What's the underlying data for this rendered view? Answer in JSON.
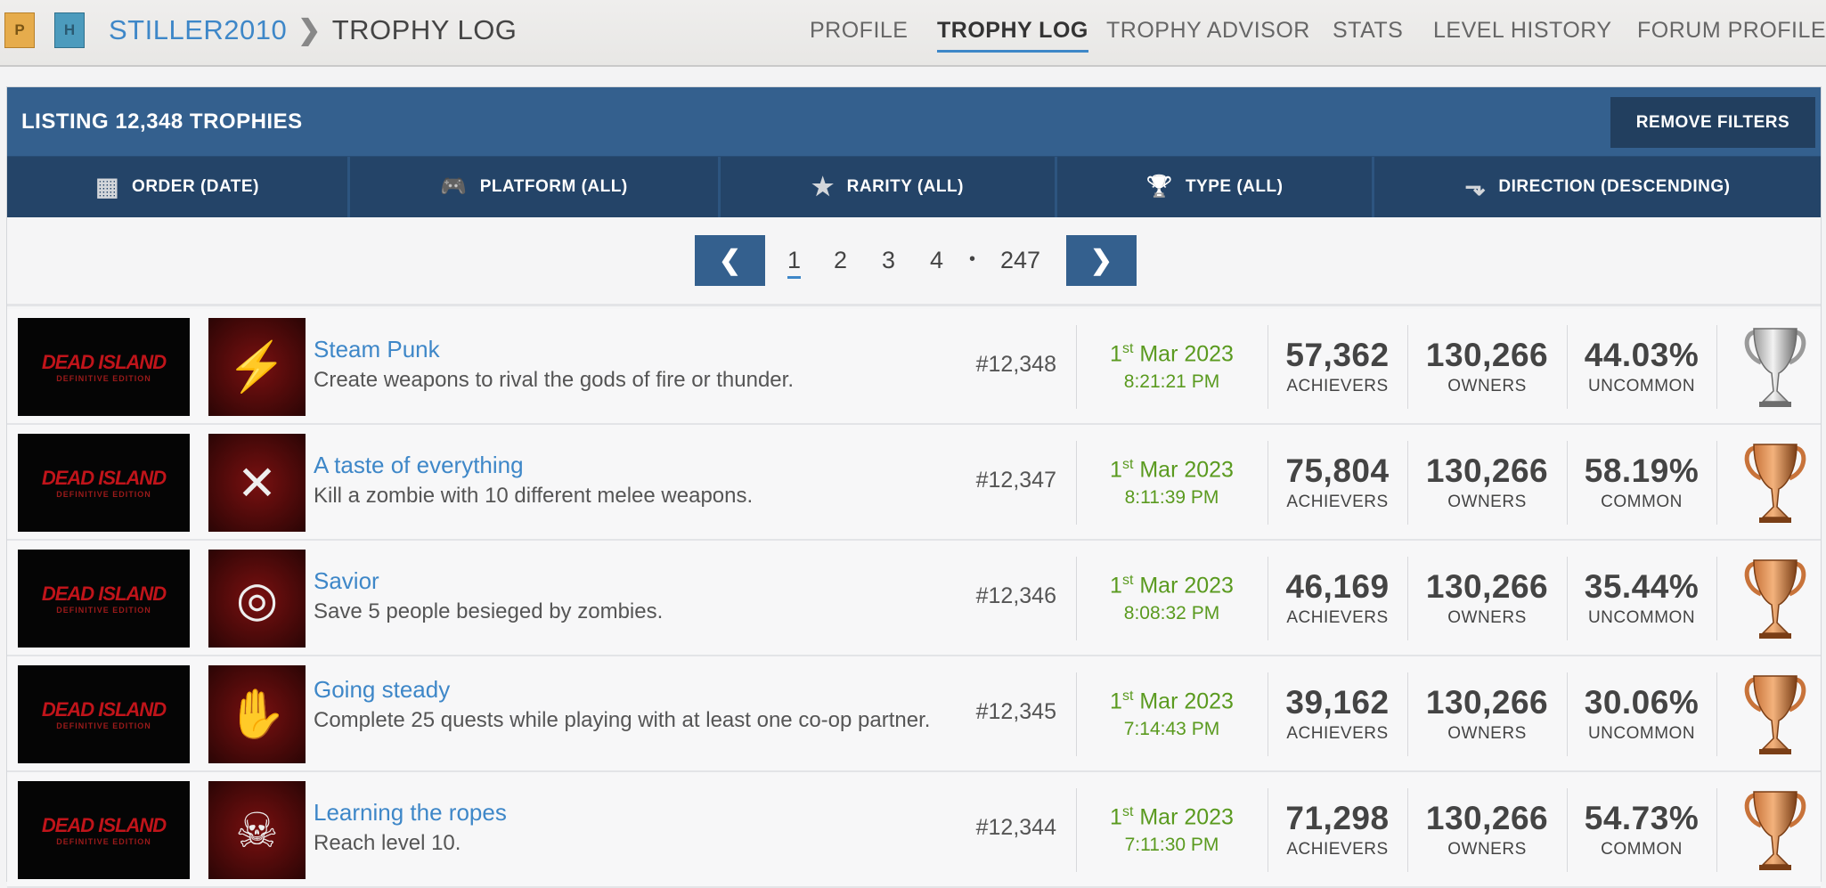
{
  "header": {
    "badges": [
      "P",
      "H"
    ],
    "username": "STILLER2010",
    "breadcrumb_separator": "❯",
    "current_page": "TROPHY LOG",
    "nav": [
      "PROFILE",
      "TROPHY LOG",
      "TROPHY ADVISOR",
      "STATS",
      "LEVEL HISTORY",
      "FORUM PROFILE"
    ],
    "active_nav": "TROPHY LOG"
  },
  "listing": {
    "title": "LISTING 12,348 TROPHIES",
    "remove_filters": "REMOVE FILTERS",
    "filters": [
      {
        "icon": "grid-icon",
        "glyph": "▦",
        "label": "ORDER (DATE)"
      },
      {
        "icon": "gamepad-icon",
        "glyph": "🎮",
        "label": "PLATFORM (ALL)"
      },
      {
        "icon": "star-icon",
        "glyph": "★",
        "label": "RARITY (ALL)"
      },
      {
        "icon": "trophy-icon",
        "glyph": "🏆",
        "label": "TYPE (ALL)"
      },
      {
        "icon": "arrow-down-icon",
        "glyph": "⬎",
        "label": "DIRECTION (DESCENDING)"
      }
    ]
  },
  "pagination": {
    "prev": "❮",
    "next": "❯",
    "pages": [
      "1",
      "2",
      "3",
      "4"
    ],
    "ellipsis": "•",
    "last": "247",
    "current": "1"
  },
  "game_logo": {
    "text": "DEAD ISLAND",
    "subtitle": "DEFINITIVE EDITION"
  },
  "colors": {
    "accent": "#3e87c8",
    "header": "#34608e",
    "filterbar": "#244468",
    "date": "#5a9a1f",
    "silver": "#b8b8b8",
    "bronze": "#c8733a"
  },
  "trophies": [
    {
      "title": "Steam Punk",
      "description": "Create weapons to rival the gods of fire or thunder.",
      "rank": "#12,348",
      "day": "1",
      "day_suffix": "st",
      "date": "Mar 2023",
      "time": "8:21:21 PM",
      "achievers": "57,362",
      "owners": "130,266",
      "rarity_pct": "44.03%",
      "rarity": "UNCOMMON",
      "type": "silver",
      "icon_glyph": "⚡"
    },
    {
      "title": "A taste of everything",
      "description": "Kill a zombie with 10 different melee weapons.",
      "rank": "#12,347",
      "day": "1",
      "day_suffix": "st",
      "date": "Mar 2023",
      "time": "8:11:39 PM",
      "achievers": "75,804",
      "owners": "130,266",
      "rarity_pct": "58.19%",
      "rarity": "COMMON",
      "type": "bronze",
      "icon_glyph": "✕"
    },
    {
      "title": "Savior",
      "description": "Save 5 people besieged by zombies.",
      "rank": "#12,346",
      "day": "1",
      "day_suffix": "st",
      "date": "Mar 2023",
      "time": "8:08:32 PM",
      "achievers": "46,169",
      "owners": "130,266",
      "rarity_pct": "35.44%",
      "rarity": "UNCOMMON",
      "type": "bronze",
      "icon_glyph": "◎"
    },
    {
      "title": "Going steady",
      "description": "Complete 25 quests while playing with at least one co-op partner.",
      "rank": "#12,345",
      "day": "1",
      "day_suffix": "st",
      "date": "Mar 2023",
      "time": "7:14:43 PM",
      "achievers": "39,162",
      "owners": "130,266",
      "rarity_pct": "30.06%",
      "rarity": "UNCOMMON",
      "type": "bronze",
      "icon_glyph": "✋"
    },
    {
      "title": "Learning the ropes",
      "description": "Reach level 10.",
      "rank": "#12,344",
      "day": "1",
      "day_suffix": "st",
      "date": "Mar 2023",
      "time": "7:11:30 PM",
      "achievers": "71,298",
      "owners": "130,266",
      "rarity_pct": "54.73%",
      "rarity": "COMMON",
      "type": "bronze",
      "icon_glyph": "☠"
    }
  ],
  "labels": {
    "achievers": "ACHIEVERS",
    "owners": "OWNERS"
  }
}
